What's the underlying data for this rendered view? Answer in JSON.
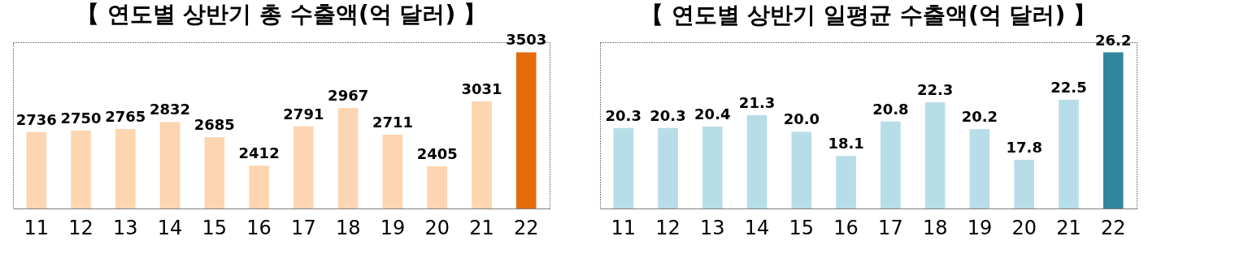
{
  "chart_data": [
    {
      "type": "bar",
      "title": "【 연도별 상반기 총 수출액(억 달러) 】",
      "categories": [
        "11",
        "12",
        "13",
        "14",
        "15",
        "16",
        "17",
        "18",
        "19",
        "20",
        "21",
        "22"
      ],
      "values": [
        2736,
        2750,
        2765,
        2832,
        2685,
        2412,
        2791,
        2967,
        2711,
        2405,
        3031,
        3503
      ],
      "colors": [
        "#fdd5b1",
        "#fdd5b1",
        "#fdd5b1",
        "#fdd5b1",
        "#fdd5b1",
        "#fdd5b1",
        "#fdd5b1",
        "#fdd5b1",
        "#fdd5b1",
        "#fdd5b1",
        "#fdd5b1",
        "#e46c0a"
      ],
      "ylim": [
        2000,
        3600
      ],
      "tick_labels": "x",
      "data_labels": true,
      "grid": false,
      "legend": false
    },
    {
      "type": "bar",
      "title": "【 연도별 상반기 일평균 수출액(억 달러) 】",
      "categories": [
        "11",
        "12",
        "13",
        "14",
        "15",
        "16",
        "17",
        "18",
        "19",
        "20",
        "21",
        "22"
      ],
      "values": [
        20.3,
        20.3,
        20.4,
        21.3,
        20.0,
        18.1,
        20.8,
        22.3,
        20.2,
        17.8,
        22.5,
        26.2
      ],
      "value_labels": [
        "20.3",
        "20.3",
        "20.4",
        "21.3",
        "20.0",
        "18.1",
        "20.8",
        "22.3",
        "20.2",
        "17.8",
        "22.5",
        "26.2"
      ],
      "colors": [
        "#b7dde8",
        "#b7dde8",
        "#b7dde8",
        "#b7dde8",
        "#b7dde8",
        "#b7dde8",
        "#b7dde8",
        "#b7dde8",
        "#b7dde8",
        "#b7dde8",
        "#b7dde8",
        "#31859c"
      ],
      "ylim": [
        14,
        27
      ],
      "tick_labels": "x",
      "grid": false,
      "legend": false
    }
  ]
}
